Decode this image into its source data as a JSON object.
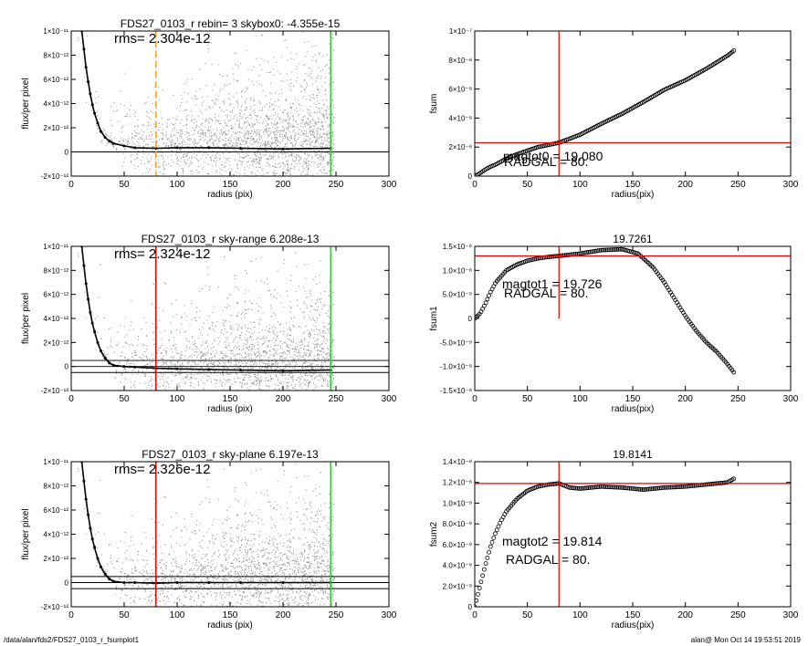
{
  "footer": {
    "left": "/data/alan/fds2/FDS27_0103_r_fsumplot1",
    "right": "alan@  Mon Oct 14 19:53:51 2019"
  },
  "colors": {
    "axis": "#000000",
    "scatter": "#8c8c8c",
    "profile": "#000000",
    "red_line": "#e00000",
    "green_line": "#33cc33",
    "orange_line": "#f5a020"
  },
  "chart_data": [
    {
      "type": "scatter",
      "title": "FDS27_0103_r rebin= 3    skybox0: -4.355e-15",
      "annotations": [
        "rms= 2.304e-12"
      ],
      "xlabel": "radius (pix)",
      "ylabel": "flux/per pixel",
      "xlim": [
        0,
        300
      ],
      "ylim": [
        -2e-12,
        1e-11
      ],
      "xticks": [
        "0",
        "50",
        "100",
        "150",
        "200",
        "250",
        "300"
      ],
      "yticks": [
        "-2×10⁻¹²",
        "0",
        "2×10⁻¹²",
        "4×10⁻¹²",
        "6×10⁻¹²",
        "8×10⁻¹²",
        "1×10⁻¹¹"
      ],
      "profile": {
        "x": [
          10,
          12,
          14,
          16,
          18,
          20,
          22,
          25,
          28,
          32,
          36,
          40,
          50,
          60,
          80,
          100,
          130,
          160,
          200,
          245
        ],
        "y": [
          1e-11,
          8.5e-12,
          7e-12,
          5.8e-12,
          4.8e-12,
          3.9e-12,
          3.2e-12,
          2.4e-12,
          1.7e-12,
          1.2e-12,
          9e-13,
          7e-13,
          5e-13,
          3.5e-13,
          3e-13,
          3.5e-13,
          3.5e-13,
          3e-13,
          2.5e-13,
          3e-13
        ]
      },
      "hlines": [
        0
      ],
      "vlines": [
        {
          "x": 80,
          "color": "orange",
          "style": "dashed"
        },
        {
          "x": 245,
          "color": "green",
          "style": "solid"
        }
      ]
    },
    {
      "type": "scatter",
      "title": "",
      "annotations": [
        "magtot0 =  19.080",
        "RADGAL =     80."
      ],
      "xlabel": "radius(pix)",
      "ylabel": "fsum",
      "xlim": [
        0,
        300
      ],
      "ylim": [
        0,
        1e-07
      ],
      "xticks": [
        "0",
        "50",
        "100",
        "150",
        "200",
        "250",
        "300"
      ],
      "yticks": [
        "0",
        "2×10⁻⁸",
        "4×10⁻⁸",
        "6×10⁻⁸",
        "8×10⁻⁸",
        "1×10⁻⁷"
      ],
      "curve": {
        "x": [
          0,
          5,
          10,
          15,
          20,
          30,
          40,
          50,
          60,
          70,
          80,
          100,
          120,
          140,
          160,
          180,
          200,
          220,
          240,
          247
        ],
        "y": [
          0,
          2e-09,
          4.5e-09,
          6.5e-09,
          8e-09,
          1.2e-08,
          1.5e-08,
          1.75e-08,
          2e-08,
          2.15e-08,
          2.3e-08,
          2.85e-08,
          3.6e-08,
          4.3e-08,
          5.1e-08,
          5.95e-08,
          6.6e-08,
          7.4e-08,
          8.3e-08,
          8.7e-08
        ]
      },
      "vline_x": 80,
      "hline_y": 2.3e-08
    },
    {
      "type": "scatter",
      "title": "FDS27_0103_r sky-range  6.208e-13",
      "annotations": [
        "rms= 2.324e-12"
      ],
      "xlabel": "radius (pix)",
      "ylabel": "flux/per pixel",
      "xlim": [
        0,
        300
      ],
      "ylim": [
        -2e-12,
        1e-11
      ],
      "xticks": [
        "0",
        "50",
        "100",
        "150",
        "200",
        "250",
        "300"
      ],
      "yticks": [
        "-2×10⁻¹²",
        "0",
        "2×10⁻¹²",
        "4×10⁻¹²",
        "6×10⁻¹²",
        "8×10⁻¹²",
        "1×10⁻¹¹"
      ],
      "profile": {
        "x": [
          10,
          12,
          14,
          16,
          18,
          20,
          22,
          25,
          28,
          32,
          36,
          40,
          50,
          60,
          80,
          100,
          130,
          160,
          200,
          245
        ],
        "y": [
          1e-11,
          8.4e-12,
          6.9e-12,
          5.6e-12,
          4.5e-12,
          3.6e-12,
          2.9e-12,
          2e-12,
          1.3e-12,
          7e-13,
          3e-13,
          1e-13,
          0,
          -5e-14,
          -1.5e-13,
          -2e-13,
          -2.5e-13,
          -3e-13,
          -3.5e-13,
          -3e-13
        ]
      },
      "hlines": [
        0,
        5e-13,
        -5e-13
      ],
      "vlines": [
        {
          "x": 80,
          "color": "red",
          "style": "solid"
        },
        {
          "x": 245,
          "color": "green",
          "style": "solid"
        }
      ]
    },
    {
      "type": "scatter",
      "title": "19.7261",
      "annotations": [
        "magtot1 =  19.726",
        "RADGAL =     80."
      ],
      "xlabel": "radius(pix)",
      "ylabel": "fsum1",
      "xlim": [
        0,
        300
      ],
      "ylim": [
        -1.5e-08,
        1.5e-08
      ],
      "xticks": [
        "0",
        "50",
        "100",
        "150",
        "200",
        "250",
        "300"
      ],
      "yticks": [
        "-1.5×10⁻⁸",
        "-1.0×10⁻⁸",
        "-5.0×10⁻⁹",
        "0",
        "5.0×10⁻⁹",
        "1.0×10⁻⁸",
        "1.5×10⁻⁸"
      ],
      "curve": {
        "x": [
          0,
          5,
          10,
          15,
          20,
          30,
          40,
          50,
          60,
          70,
          80,
          100,
          120,
          140,
          155,
          170,
          180,
          190,
          200,
          210,
          220,
          230,
          240,
          247
        ],
        "y": [
          0,
          1e-09,
          3e-09,
          5.5e-09,
          7.5e-09,
          1e-08,
          1.12e-08,
          1.2e-08,
          1.25e-08,
          1.28e-08,
          1.3e-08,
          1.35e-08,
          1.42e-08,
          1.44e-08,
          1.35e-08,
          1.05e-08,
          7.5e-09,
          4e-09,
          5e-10,
          -2.5e-09,
          -5e-09,
          -7e-09,
          -9.5e-09,
          -1.15e-08
        ]
      },
      "vline_x": 80,
      "hline_y": 1.3e-08
    },
    {
      "type": "scatter",
      "title": "FDS27_0103_r sky-plane  6.197e-13",
      "annotations": [
        "rms= 2.326e-12"
      ],
      "xlabel": "radius (pix)",
      "ylabel": "flux/per pixel",
      "xlim": [
        0,
        300
      ],
      "ylim": [
        -2e-12,
        1e-11
      ],
      "xticks": [
        "0",
        "50",
        "100",
        "150",
        "200",
        "250",
        "300"
      ],
      "yticks": [
        "-2×10⁻¹²",
        "0",
        "2×10⁻¹²",
        "4×10⁻¹²",
        "6×10⁻¹²",
        "8×10⁻¹²",
        "1×10⁻¹¹"
      ],
      "profile": {
        "x": [
          10,
          12,
          14,
          16,
          18,
          20,
          22,
          25,
          28,
          32,
          36,
          40,
          50,
          60,
          80,
          100,
          130,
          160,
          200,
          245
        ],
        "y": [
          1e-11,
          8.4e-12,
          6.9e-12,
          5.6e-12,
          4.5e-12,
          3.6e-12,
          2.9e-12,
          2e-12,
          1.3e-12,
          7e-13,
          3e-13,
          1e-13,
          0,
          0,
          -5e-14,
          0,
          0,
          0,
          0,
          0
        ]
      },
      "hlines": [
        0,
        5e-13,
        -5e-13
      ],
      "vlines": [
        {
          "x": 80,
          "color": "red",
          "style": "solid"
        },
        {
          "x": 245,
          "color": "green",
          "style": "solid"
        }
      ]
    },
    {
      "type": "scatter",
      "title": "19.8141",
      "annotations": [
        "magtot2 =  19.814",
        "RADGAL =     80."
      ],
      "xlabel": "radius(pix)",
      "ylabel": "fsum2",
      "xlim": [
        0,
        300
      ],
      "ylim": [
        0,
        1.4e-08
      ],
      "xticks": [
        "0",
        "50",
        "100",
        "150",
        "200",
        "250",
        "300"
      ],
      "yticks": [
        "0",
        "2.0×10⁻⁹",
        "4.0×10⁻⁹",
        "6.0×10⁻⁹",
        "8.0×10⁻⁹",
        "1.0×10⁻⁸",
        "1.2×10⁻⁸",
        "1.4×10⁻⁸"
      ],
      "curve": {
        "x": [
          0,
          5,
          10,
          15,
          20,
          25,
          30,
          40,
          50,
          60,
          70,
          80,
          90,
          100,
          120,
          140,
          160,
          180,
          200,
          220,
          240,
          247
        ],
        "y": [
          0,
          2e-09,
          4e-09,
          5.8e-09,
          7.2e-09,
          8.3e-09,
          9.2e-09,
          1.04e-08,
          1.12e-08,
          1.16e-08,
          1.18e-08,
          1.19e-08,
          1.15e-08,
          1.14e-08,
          1.16e-08,
          1.15e-08,
          1.13e-08,
          1.15e-08,
          1.16e-08,
          1.18e-08,
          1.2e-08,
          1.24e-08
        ]
      },
      "vline_x": 80,
      "hline_y": 1.19e-08
    }
  ]
}
